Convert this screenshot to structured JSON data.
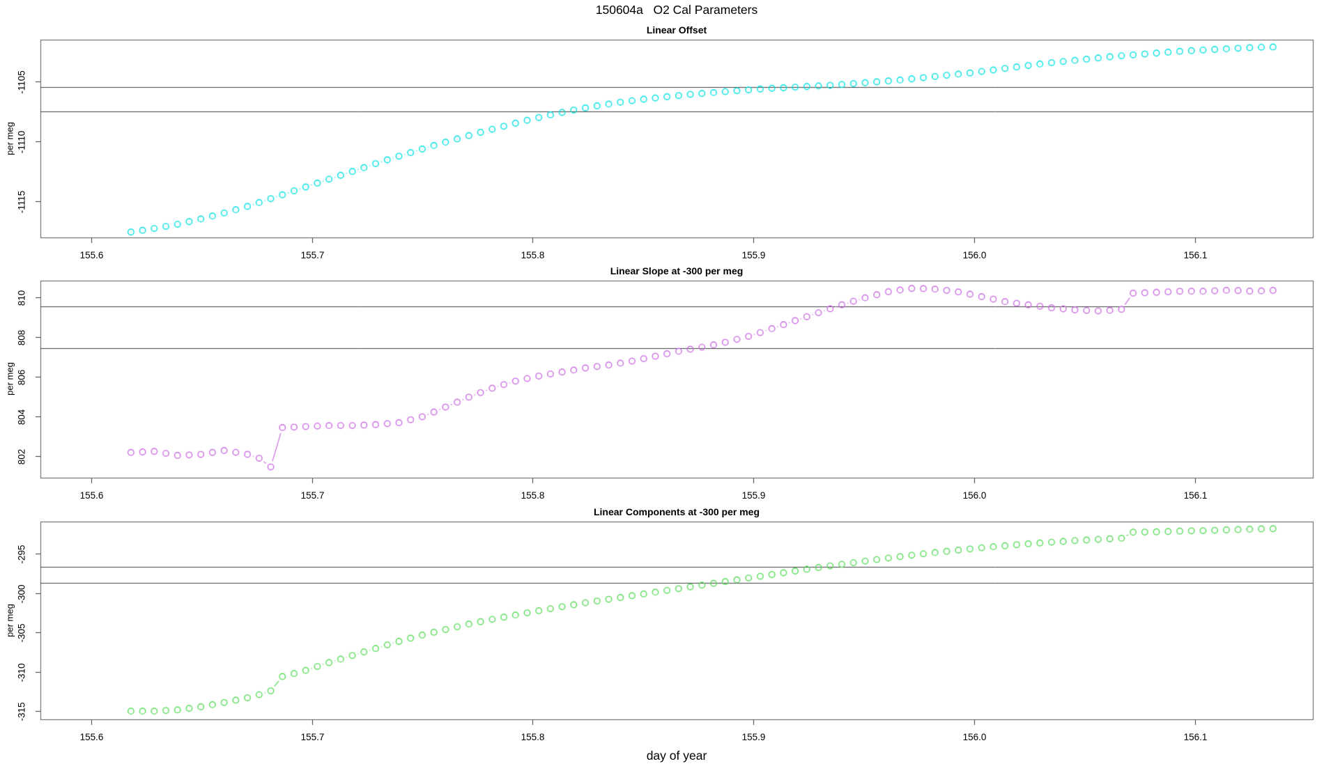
{
  "title": "150604a   O2 Cal Parameters",
  "x_axis": {
    "label": "day of year",
    "ticks": [
      155.6,
      155.7,
      155.8,
      155.9,
      156.0,
      156.1
    ],
    "lim": [
      155.577,
      156.1535
    ]
  },
  "chart_data": [
    {
      "type": "scatter",
      "title": "Linear Offset",
      "ylabel": "per meg",
      "xlabel": "",
      "marker": "open-circle",
      "line_style": "b-type-segments",
      "color": "#00E2E2",
      "y_ticks": [
        -1105,
        -1110,
        -1115
      ],
      "ylim": [
        -1118.0,
        -1101.5
      ],
      "ref_lines": [
        -1105.43,
        -1107.46
      ],
      "grid": false,
      "sampling": {
        "start_day": 155.618,
        "step_day": 0.00528,
        "count": 99
      },
      "points": [
        [
          155.618,
          -1117.55
        ],
        [
          155.6286,
          -1117.25
        ],
        [
          155.6392,
          -1116.9
        ],
        [
          155.6498,
          -1116.45
        ],
        [
          155.6604,
          -1115.95
        ],
        [
          155.671,
          -1115.4
        ],
        [
          155.6816,
          -1114.75
        ],
        [
          155.6921,
          -1114.1
        ],
        [
          155.7027,
          -1113.45
        ],
        [
          155.7133,
          -1112.8
        ],
        [
          155.7239,
          -1112.15
        ],
        [
          155.7345,
          -1111.5
        ],
        [
          155.7451,
          -1110.9
        ],
        [
          155.7557,
          -1110.3
        ],
        [
          155.7663,
          -1109.75
        ],
        [
          155.7769,
          -1109.2
        ],
        [
          155.7874,
          -1108.7
        ],
        [
          155.798,
          -1108.2
        ],
        [
          155.8086,
          -1107.75
        ],
        [
          155.8192,
          -1107.35
        ],
        [
          155.8298,
          -1107.0
        ],
        [
          155.8404,
          -1106.7
        ],
        [
          155.851,
          -1106.45
        ],
        [
          155.8616,
          -1106.25
        ],
        [
          155.8722,
          -1106.05
        ],
        [
          155.8827,
          -1105.9
        ],
        [
          155.8933,
          -1105.75
        ],
        [
          155.9039,
          -1105.6
        ],
        [
          155.9145,
          -1105.5
        ],
        [
          155.9251,
          -1105.4
        ],
        [
          155.9357,
          -1105.3
        ],
        [
          155.9463,
          -1105.15
        ],
        [
          155.9569,
          -1105.0
        ],
        [
          155.9675,
          -1104.85
        ],
        [
          155.978,
          -1104.65
        ],
        [
          155.9886,
          -1104.45
        ],
        [
          155.9992,
          -1104.25
        ],
        [
          156.0098,
          -1104.0
        ],
        [
          156.0204,
          -1103.75
        ],
        [
          156.031,
          -1103.5
        ],
        [
          156.0416,
          -1103.3
        ],
        [
          156.0522,
          -1103.1
        ],
        [
          156.0628,
          -1102.9
        ],
        [
          156.0733,
          -1102.75
        ],
        [
          156.0839,
          -1102.6
        ],
        [
          156.0945,
          -1102.45
        ],
        [
          156.1051,
          -1102.35
        ],
        [
          156.1157,
          -1102.25
        ],
        [
          156.1263,
          -1102.15
        ],
        [
          156.1369,
          -1102.1
        ]
      ]
    },
    {
      "type": "scatter",
      "title": "Linear Slope at -300 per meg",
      "ylabel": "per meg",
      "xlabel": "",
      "marker": "open-circle",
      "line_style": "b-type-segments",
      "color": "#CB6CE3",
      "y_ticks": [
        810,
        808,
        806,
        804,
        802
      ],
      "ylim": [
        800.93,
        810.83
      ],
      "ref_lines": [
        809.52,
        807.44
      ],
      "grid": false,
      "sampling": {
        "start_day": 155.618,
        "step_day": 0.00528,
        "count": 99
      },
      "points": [
        [
          155.618,
          802.2
        ],
        [
          155.6286,
          802.25
        ],
        [
          155.6392,
          802.05
        ],
        [
          155.6498,
          802.1
        ],
        [
          155.6604,
          802.3
        ],
        [
          155.671,
          802.1
        ],
        [
          155.6763,
          801.9
        ],
        [
          155.6816,
          801.45
        ],
        [
          155.6869,
          803.45
        ],
        [
          155.6975,
          803.5
        ],
        [
          155.7081,
          803.55
        ],
        [
          155.7187,
          803.55
        ],
        [
          155.7293,
          803.6
        ],
        [
          155.7398,
          803.7
        ],
        [
          155.7504,
          804.0
        ],
        [
          155.761,
          804.5
        ],
        [
          155.7716,
          805.0
        ],
        [
          155.7822,
          805.45
        ],
        [
          155.7928,
          805.8
        ],
        [
          155.8034,
          806.05
        ],
        [
          155.814,
          806.25
        ],
        [
          155.8245,
          806.45
        ],
        [
          155.8351,
          806.6
        ],
        [
          155.8457,
          806.8
        ],
        [
          155.8563,
          807.05
        ],
        [
          155.8669,
          807.3
        ],
        [
          155.8775,
          807.5
        ],
        [
          155.888,
          807.75
        ],
        [
          155.8986,
          808.05
        ],
        [
          155.9092,
          808.45
        ],
        [
          155.9198,
          808.85
        ],
        [
          155.9304,
          809.25
        ],
        [
          155.941,
          809.65
        ],
        [
          155.9516,
          810.0
        ],
        [
          155.9622,
          810.3
        ],
        [
          155.9727,
          810.45
        ],
        [
          155.9833,
          810.4
        ],
        [
          155.9939,
          810.25
        ],
        [
          156.0045,
          810.0
        ],
        [
          156.0151,
          809.75
        ],
        [
          156.0257,
          809.6
        ],
        [
          156.0363,
          809.45
        ],
        [
          156.0469,
          809.35
        ],
        [
          156.0575,
          809.3
        ],
        [
          156.068,
          809.4
        ],
        [
          156.0733,
          810.2
        ],
        [
          156.0839,
          810.25
        ],
        [
          156.0945,
          810.3
        ],
        [
          156.1051,
          810.3
        ],
        [
          156.1157,
          810.35
        ],
        [
          156.1263,
          810.3
        ],
        [
          156.1369,
          810.35
        ]
      ]
    },
    {
      "type": "scatter",
      "title": "Linear Components at -300 per meg",
      "ylabel": "per meg",
      "xlabel": "day of year",
      "marker": "open-circle",
      "line_style": "b-type-segments",
      "color": "#58DC58",
      "y_ticks": [
        -295,
        -300,
        -305,
        -310,
        -315
      ],
      "ylim": [
        -316.05,
        -290.9
      ],
      "ref_lines": [
        -296.67,
        -298.67
      ],
      "grid": false,
      "sampling": {
        "start_day": 155.618,
        "step_day": 0.00528,
        "count": 99
      },
      "points": [
        [
          155.618,
          -315.0
        ],
        [
          155.6286,
          -315.0
        ],
        [
          155.6392,
          -314.85
        ],
        [
          155.6498,
          -314.45
        ],
        [
          155.6604,
          -313.9
        ],
        [
          155.671,
          -313.3
        ],
        [
          155.6763,
          -312.9
        ],
        [
          155.6816,
          -312.4
        ],
        [
          155.6869,
          -310.6
        ],
        [
          155.6975,
          -309.8
        ],
        [
          155.7081,
          -308.8
        ],
        [
          155.7187,
          -307.9
        ],
        [
          155.7293,
          -307.0
        ],
        [
          155.7398,
          -306.1
        ],
        [
          155.7504,
          -305.3
        ],
        [
          155.761,
          -304.6
        ],
        [
          155.7716,
          -303.9
        ],
        [
          155.7822,
          -303.3
        ],
        [
          155.7928,
          -302.75
        ],
        [
          155.8034,
          -302.2
        ],
        [
          155.814,
          -301.7
        ],
        [
          155.8245,
          -301.2
        ],
        [
          155.8351,
          -300.75
        ],
        [
          155.8457,
          -300.3
        ],
        [
          155.8563,
          -299.85
        ],
        [
          155.8669,
          -299.4
        ],
        [
          155.8775,
          -298.95
        ],
        [
          155.888,
          -298.5
        ],
        [
          155.8986,
          -298.05
        ],
        [
          155.9092,
          -297.6
        ],
        [
          155.9198,
          -297.15
        ],
        [
          155.9304,
          -296.7
        ],
        [
          155.941,
          -296.3
        ],
        [
          155.9516,
          -295.9
        ],
        [
          155.9622,
          -295.5
        ],
        [
          155.9727,
          -295.15
        ],
        [
          155.9833,
          -294.8
        ],
        [
          155.9939,
          -294.5
        ],
        [
          156.0045,
          -294.2
        ],
        [
          156.0151,
          -293.95
        ],
        [
          156.0257,
          -293.7
        ],
        [
          156.0363,
          -293.5
        ],
        [
          156.0469,
          -293.3
        ],
        [
          156.0575,
          -293.15
        ],
        [
          156.068,
          -293.0
        ],
        [
          156.0733,
          -292.25
        ],
        [
          156.0839,
          -292.2
        ],
        [
          156.0945,
          -292.1
        ],
        [
          156.1051,
          -292.05
        ],
        [
          156.1157,
          -291.95
        ],
        [
          156.1263,
          -291.85
        ],
        [
          156.1369,
          -291.8
        ]
      ]
    }
  ]
}
